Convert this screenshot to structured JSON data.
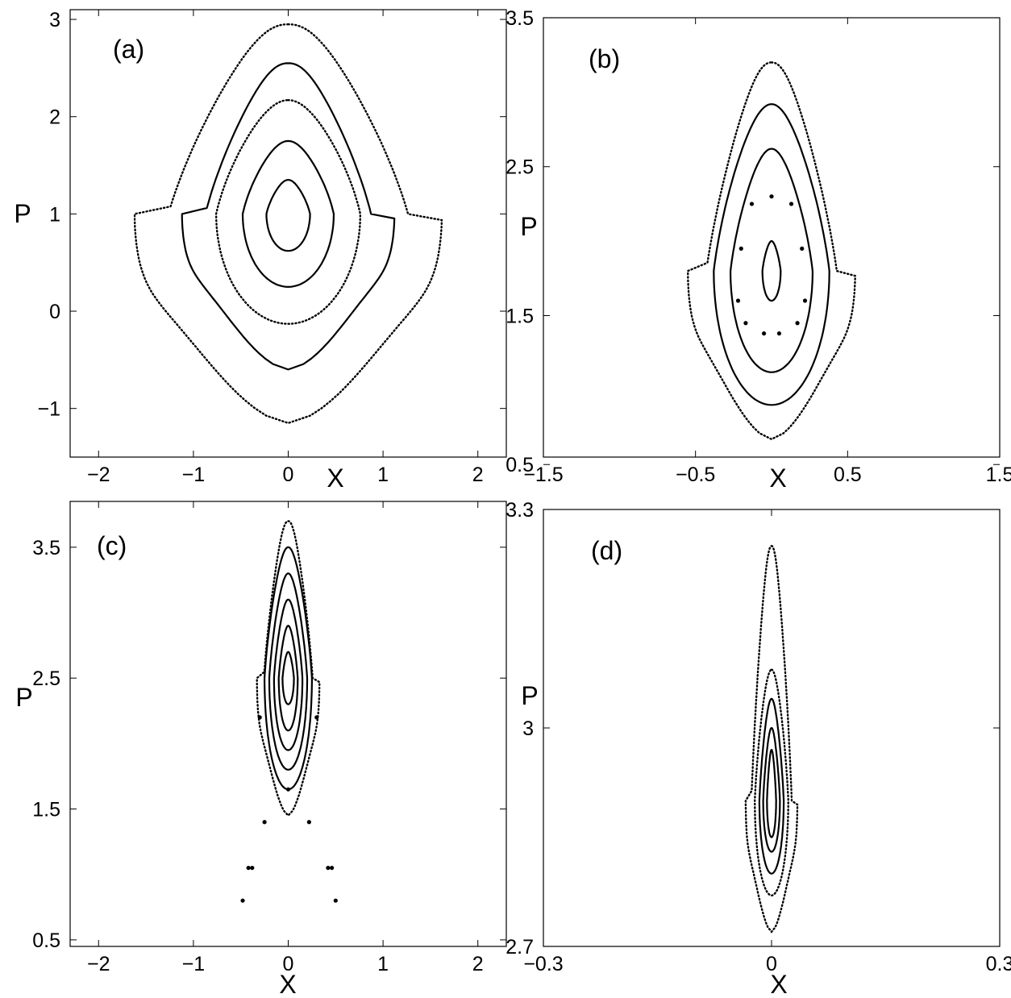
{
  "chart_data": [
    {
      "type": "scatter",
      "panel_label": "(a)",
      "xlabel": "X",
      "ylabel": "P",
      "xlim": [
        -2.3,
        2.3
      ],
      "ylim": [
        -1.5,
        3.1
      ],
      "xticks": [
        -2,
        -1,
        0,
        1,
        2
      ],
      "xtick_labels": [
        "−2",
        "−1",
        "0",
        "1",
        "2"
      ],
      "yticks": [
        -1,
        0,
        1,
        2,
        3
      ],
      "ytick_labels": [
        "−1",
        "0",
        "1",
        "2",
        "3"
      ],
      "orbits": [
        {
          "center": 1.0,
          "top": 1.35,
          "bottom": 0.62,
          "halfwidth": 0.23,
          "style": "solid"
        },
        {
          "center": 1.0,
          "top": 1.75,
          "bottom": 0.25,
          "halfwidth": 0.48,
          "style": "solid"
        },
        {
          "center": 1.0,
          "top": 2.17,
          "bottom": -0.13,
          "halfwidth": 0.76,
          "style": "dotted"
        },
        {
          "center": 1.0,
          "top": 2.55,
          "bottom": -0.6,
          "halfwidth": 1.12,
          "style": "solid",
          "shape": "bell"
        },
        {
          "center": 1.0,
          "top": 2.95,
          "bottom": -1.15,
          "halfwidth": 1.62,
          "style": "dotted",
          "shape": "bell"
        }
      ]
    },
    {
      "type": "scatter",
      "panel_label": "(b)",
      "xlabel": "X",
      "ylabel": "P",
      "xlim": [
        -1.5,
        1.5
      ],
      "ylim": [
        0.55,
        3.5
      ],
      "xticks": [
        -1.5,
        -0.5,
        0.5,
        1.5
      ],
      "xtick_labels": [
        "−1.5",
        "−0.5",
        "0.5",
        "1.5"
      ],
      "yticks": [
        0.5,
        1.5,
        2.5,
        3.5
      ],
      "ytick_labels": [
        "0.5",
        "1.5",
        "2.5",
        "3.5"
      ],
      "orbits": [
        {
          "center": 1.8,
          "top": 2.0,
          "bottom": 1.6,
          "halfwidth": 0.06,
          "style": "solid"
        },
        {
          "center": 1.8,
          "top": 2.62,
          "bottom": 1.12,
          "halfwidth": 0.27,
          "style": "solid"
        },
        {
          "center": 1.8,
          "top": 2.92,
          "bottom": 0.9,
          "halfwidth": 0.38,
          "style": "solid"
        },
        {
          "center": 1.8,
          "top": 3.2,
          "bottom": 0.67,
          "halfwidth": 0.55,
          "style": "dotted",
          "shape": "bell"
        }
      ],
      "islands": [
        {
          "x": 0.0,
          "y": 2.3
        },
        {
          "x": 0.13,
          "y": 2.25
        },
        {
          "x": -0.13,
          "y": 2.25
        },
        {
          "x": -0.2,
          "y": 1.95
        },
        {
          "x": 0.2,
          "y": 1.95
        },
        {
          "x": -0.22,
          "y": 1.6
        },
        {
          "x": 0.22,
          "y": 1.6
        },
        {
          "x": -0.17,
          "y": 1.45
        },
        {
          "x": 0.17,
          "y": 1.45
        },
        {
          "x": -0.05,
          "y": 1.38
        },
        {
          "x": 0.05,
          "y": 1.38
        }
      ]
    },
    {
      "type": "scatter",
      "panel_label": "(c)",
      "xlabel": "X",
      "ylabel": "P",
      "xlim": [
        -2.3,
        2.3
      ],
      "ylim": [
        0.45,
        3.85
      ],
      "xticks": [
        -2,
        -1,
        0,
        1,
        2
      ],
      "xtick_labels": [
        "−2",
        "−1",
        "0",
        "1",
        "2"
      ],
      "yticks": [
        0.5,
        1.5,
        2.5,
        3.5
      ],
      "ytick_labels": [
        "0.5",
        "1.5",
        "2.5",
        "3.5"
      ],
      "orbits": [
        {
          "center": 2.5,
          "top": 2.7,
          "bottom": 2.3,
          "halfwidth": 0.06,
          "style": "solid"
        },
        {
          "center": 2.5,
          "top": 2.9,
          "bottom": 2.1,
          "halfwidth": 0.1,
          "style": "solid"
        },
        {
          "center": 2.5,
          "top": 3.1,
          "bottom": 1.95,
          "halfwidth": 0.15,
          "style": "solid"
        },
        {
          "center": 2.5,
          "top": 3.3,
          "bottom": 1.8,
          "halfwidth": 0.2,
          "style": "solid"
        },
        {
          "center": 2.5,
          "top": 3.5,
          "bottom": 1.65,
          "halfwidth": 0.25,
          "style": "solid"
        },
        {
          "center": 2.5,
          "top": 3.7,
          "bottom": 1.45,
          "halfwidth": 0.33,
          "style": "dotted",
          "shape": "bell"
        }
      ],
      "islands": [
        {
          "x": -0.42,
          "y": 1.05
        },
        {
          "x": -0.38,
          "y": 1.05
        },
        {
          "x": 0.42,
          "y": 1.05
        },
        {
          "x": 0.46,
          "y": 1.05
        },
        {
          "x": -0.48,
          "y": 0.8
        },
        {
          "x": 0.5,
          "y": 0.8
        },
        {
          "x": -0.25,
          "y": 1.4
        },
        {
          "x": 0.22,
          "y": 1.4
        },
        {
          "x": 0.0,
          "y": 1.65
        },
        {
          "x": -0.3,
          "y": 2.2
        },
        {
          "x": 0.3,
          "y": 2.2
        }
      ]
    },
    {
      "type": "scatter",
      "panel_label": "(d)",
      "xlabel": "X",
      "ylabel": "P",
      "xlim": [
        -0.3,
        0.3
      ],
      "ylim": [
        2.7,
        3.3
      ],
      "xticks": [
        -0.3,
        0,
        0.3
      ],
      "xtick_labels": [
        "−0.3",
        "0",
        "0.3"
      ],
      "yticks": [
        2.7,
        3.0,
        3.3
      ],
      "ytick_labels": [
        "2.7",
        "3",
        "3.3"
      ],
      "orbits": [
        {
          "center": 2.9,
          "top": 2.97,
          "bottom": 2.85,
          "halfwidth": 0.006,
          "style": "solid"
        },
        {
          "center": 2.9,
          "top": 3.0,
          "bottom": 2.83,
          "halfwidth": 0.011,
          "style": "solid"
        },
        {
          "center": 2.9,
          "top": 3.04,
          "bottom": 2.8,
          "halfwidth": 0.016,
          "style": "solid"
        },
        {
          "center": 2.9,
          "top": 3.08,
          "bottom": 2.77,
          "halfwidth": 0.022,
          "style": "dotted"
        },
        {
          "center": 2.9,
          "top": 3.25,
          "bottom": 2.72,
          "halfwidth": 0.034,
          "style": "dotted",
          "shape": "bell"
        }
      ]
    }
  ]
}
